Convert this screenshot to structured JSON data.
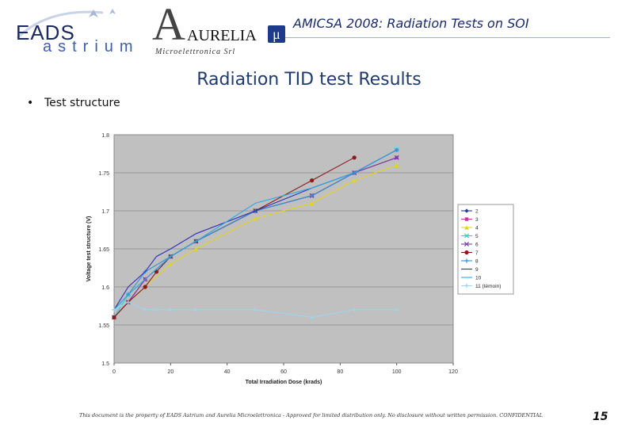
{
  "header": {
    "eads_text": "EADS",
    "astrium_text": "astrium",
    "aurelia_text": "AURELIA",
    "aurelia_sub": "Microelettronica Srl",
    "mu_symbol": "μ",
    "conference_title": "AMICSA 2008: Radiation Tests on SOI"
  },
  "slide": {
    "title": "Radiation TID test Results",
    "bullet": "Test structure"
  },
  "footer": {
    "note": "This document is the property of EADS Astrium and Aurelia Microelettronica - Approved for limited distribution only. No disclosure without written permission. CONFIDENTIAL",
    "page_number": "15"
  },
  "colors": {
    "title": "#1f3b6f",
    "plot_background": "#c0c0c0",
    "accent": "#1a2b6b"
  },
  "chart_data": {
    "type": "line",
    "title": "",
    "xlabel": "Total Irradiation Dose (krads)",
    "ylabel": "Voltage test structure (V)",
    "xlim": [
      0,
      120
    ],
    "ylim": [
      1.5,
      1.8
    ],
    "x_ticks": [
      0,
      20,
      40,
      60,
      80,
      100,
      120
    ],
    "y_ticks": [
      1.5,
      1.55,
      1.6,
      1.65,
      1.7,
      1.75,
      1.8
    ],
    "grid": "horizontal",
    "legend_position": "right",
    "series": [
      {
        "name": "2",
        "color": "#1f3a93",
        "marker": "diamond",
        "x": [
          0,
          5,
          11,
          20,
          29,
          50,
          70,
          85,
          100
        ],
        "y": [
          1.56,
          1.58,
          1.61,
          1.64,
          1.66,
          1.7,
          1.72,
          1.75,
          1.78
        ]
      },
      {
        "name": "3",
        "color": "#c03aa8",
        "marker": "square",
        "x": [
          0,
          5,
          11,
          20,
          29,
          50,
          70,
          85,
          100
        ],
        "y": [
          1.56,
          1.58,
          1.61,
          1.64,
          1.66,
          1.7,
          1.72,
          1.75,
          1.77
        ]
      },
      {
        "name": "4",
        "color": "#e5d418",
        "marker": "triangle",
        "x": [
          0,
          5,
          11,
          20,
          29,
          50,
          70,
          85,
          100
        ],
        "y": [
          1.56,
          1.58,
          1.6,
          1.63,
          1.65,
          1.69,
          1.71,
          1.74,
          1.76
        ]
      },
      {
        "name": "5",
        "color": "#33cccc",
        "marker": "x",
        "x": [
          0,
          5,
          11,
          20,
          29,
          50,
          70,
          85,
          100
        ],
        "y": [
          1.56,
          1.59,
          1.61,
          1.64,
          1.66,
          1.7,
          1.72,
          1.75,
          1.78
        ]
      },
      {
        "name": "6",
        "color": "#7a3fa0",
        "marker": "x",
        "x": [
          0,
          5,
          11,
          20,
          29,
          50,
          70,
          85,
          100
        ],
        "y": [
          1.56,
          1.58,
          1.61,
          1.64,
          1.66,
          1.7,
          1.72,
          1.75,
          1.77
        ]
      },
      {
        "name": "7",
        "color": "#8b1a1a",
        "marker": "circle",
        "x": [
          0,
          5,
          11,
          15,
          20,
          29,
          50,
          70,
          85
        ],
        "y": [
          1.56,
          1.58,
          1.6,
          1.62,
          1.64,
          1.66,
          1.7,
          1.74,
          1.77
        ]
      },
      {
        "name": "8",
        "color": "#3a8fd0",
        "marker": "plus",
        "x": [
          0,
          5,
          11,
          20,
          29,
          50,
          70,
          85,
          100
        ],
        "y": [
          1.57,
          1.59,
          1.62,
          1.64,
          1.66,
          1.7,
          1.72,
          1.75,
          1.78
        ]
      },
      {
        "name": "9",
        "color": "#2b2fb8",
        "marker": "none",
        "x": [
          0,
          5,
          11,
          15,
          20,
          29,
          50,
          70,
          85,
          100
        ],
        "y": [
          1.57,
          1.6,
          1.62,
          1.64,
          1.65,
          1.67,
          1.7,
          1.73,
          1.75,
          1.78
        ]
      },
      {
        "name": "10",
        "color": "#2fa8e0",
        "marker": "none",
        "x": [
          0,
          5,
          11,
          20,
          29,
          50,
          60,
          70,
          85,
          100
        ],
        "y": [
          1.57,
          1.59,
          1.61,
          1.64,
          1.66,
          1.71,
          1.72,
          1.73,
          1.75,
          1.78
        ]
      },
      {
        "name": "11 (témoin)",
        "color": "#9fd4ee",
        "marker": "plus",
        "x": [
          0,
          5,
          11,
          15,
          20,
          29,
          50,
          70,
          85,
          100
        ],
        "y": [
          1.57,
          1.58,
          1.57,
          1.57,
          1.57,
          1.57,
          1.57,
          1.56,
          1.57,
          1.57
        ]
      }
    ]
  }
}
